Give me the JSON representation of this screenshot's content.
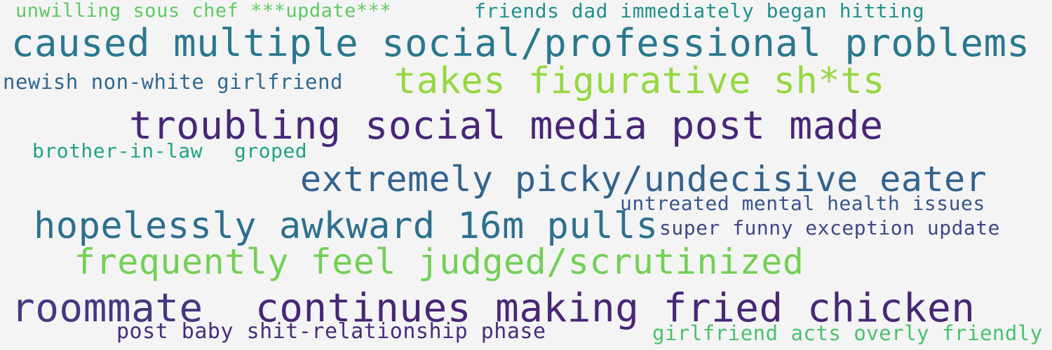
{
  "words": [
    {
      "text": "unwilling sous chef ***update***",
      "color": "#5ec962"
    },
    {
      "text": "friends dad immediately began hitting",
      "color": "#21918c"
    },
    {
      "text": "caused multiple social/professional problems",
      "color": "#2a788e"
    },
    {
      "text": "newish non-white girlfriend",
      "color": "#31688e"
    },
    {
      "text": "takes figurative sh*ts",
      "color": "#95d840"
    },
    {
      "text": "troubling social media post made",
      "color": "#482677"
    },
    {
      "text": "brother-in-law",
      "color": "#20a386"
    },
    {
      "text": "groped",
      "color": "#20a386"
    },
    {
      "text": "extremely picky/undecisive eater",
      "color": "#33638d"
    },
    {
      "text": "untreated mental health issues",
      "color": "#39568c"
    },
    {
      "text": "hopelessly awkward 16m pulls",
      "color": "#2d708e"
    },
    {
      "text": "super funny exception update",
      "color": "#3f4788"
    },
    {
      "text": "frequently feel judged/scrutinized",
      "color": "#73d055"
    },
    {
      "text": "roommate",
      "color": "#453781"
    },
    {
      "text": "continues making fried chicken",
      "color": "#482677"
    },
    {
      "text": "post baby shit-relationship phase",
      "color": "#472d7b"
    },
    {
      "text": "girlfriend acts overly friendly",
      "color": "#4ac16d"
    }
  ]
}
